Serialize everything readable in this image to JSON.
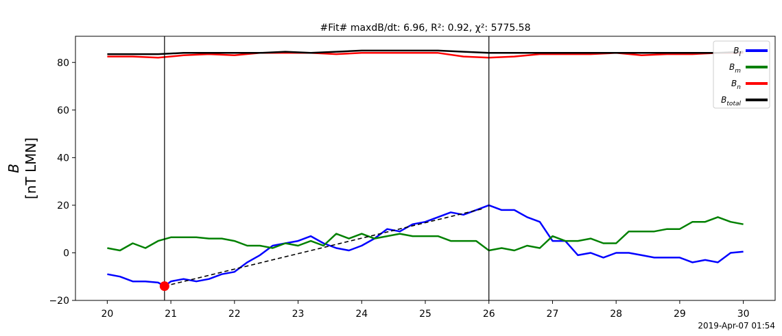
{
  "chart_data": {
    "type": "line",
    "title": "#Fit# maxdB/dt: 6.96, R²: 0.92, χ²: 5775.58",
    "ylabel_line1": "B",
    "ylabel_line2": "[nT LMN]",
    "xlabel": "",
    "xlim": [
      19.5,
      30.5
    ],
    "ylim": [
      -20,
      91
    ],
    "xticks": [
      20,
      21,
      22,
      23,
      24,
      25,
      26,
      27,
      28,
      29,
      30
    ],
    "yticks": [
      -20,
      0,
      20,
      40,
      60,
      80
    ],
    "timestamp": "2019-Apr-07 01:54",
    "legend_position": "top-right",
    "series": [
      {
        "name": "B_l",
        "label": "Bl",
        "color": "#0000ff",
        "x": [
          20.0,
          20.2,
          20.4,
          20.6,
          20.8,
          20.9,
          21.0,
          21.2,
          21.4,
          21.6,
          21.8,
          22.0,
          22.2,
          22.4,
          22.6,
          22.8,
          23.0,
          23.2,
          23.4,
          23.6,
          23.8,
          24.0,
          24.2,
          24.4,
          24.6,
          24.8,
          25.0,
          25.2,
          25.4,
          25.6,
          25.8,
          26.0,
          26.2,
          26.4,
          26.6,
          26.8,
          27.0,
          27.2,
          27.4,
          27.6,
          27.8,
          28.0,
          28.2,
          28.4,
          28.6,
          28.8,
          29.0,
          29.2,
          29.4,
          29.6,
          29.8,
          30.0
        ],
        "y": [
          -9,
          -10,
          -12,
          -12,
          -12.5,
          -14,
          -12,
          -11,
          -12,
          -11,
          -9,
          -8,
          -4,
          -1,
          3,
          4,
          5,
          7,
          4,
          2,
          1,
          3,
          6,
          10,
          9,
          12,
          13,
          15,
          17,
          16,
          18,
          20,
          18,
          18,
          15,
          13,
          5,
          5,
          -1,
          0,
          -2,
          0,
          0,
          -1,
          -2,
          -2,
          -2,
          -4,
          -3,
          -4,
          0,
          0.5
        ]
      },
      {
        "name": "B_m",
        "label": "Bm",
        "color": "#008000",
        "x": [
          20.0,
          20.2,
          20.4,
          20.6,
          20.8,
          21.0,
          21.2,
          21.4,
          21.6,
          21.8,
          22.0,
          22.2,
          22.4,
          22.6,
          22.8,
          23.0,
          23.2,
          23.4,
          23.6,
          23.8,
          24.0,
          24.2,
          24.4,
          24.6,
          24.8,
          25.0,
          25.2,
          25.4,
          25.6,
          25.8,
          26.0,
          26.2,
          26.4,
          26.6,
          26.8,
          27.0,
          27.2,
          27.4,
          27.6,
          27.8,
          28.0,
          28.2,
          28.4,
          28.6,
          28.8,
          29.0,
          29.2,
          29.4,
          29.6,
          29.8,
          30.0
        ],
        "y": [
          2,
          1,
          4,
          2,
          5,
          6.5,
          6.5,
          6.5,
          6,
          6,
          5,
          3,
          3,
          2,
          4,
          3,
          5,
          3,
          8,
          6,
          8,
          6,
          7,
          8,
          7,
          7,
          7,
          5,
          5,
          5,
          1,
          2,
          1,
          3,
          2,
          7,
          5,
          5,
          6,
          4,
          4,
          9,
          9,
          9,
          10,
          10,
          13,
          13,
          15,
          13,
          12
        ]
      },
      {
        "name": "B_n",
        "label": "Bn",
        "color": "#ff0000",
        "x": [
          20.0,
          20.4,
          20.8,
          21.2,
          21.6,
          22.0,
          22.4,
          22.8,
          23.2,
          23.6,
          24.0,
          24.4,
          24.8,
          25.2,
          25.6,
          26.0,
          26.4,
          26.8,
          27.2,
          27.6,
          28.0,
          28.4,
          28.8,
          29.2,
          29.6,
          30.0
        ],
        "y": [
          82.5,
          82.5,
          82,
          83,
          83.5,
          83,
          84,
          84,
          84,
          83.5,
          84,
          84,
          84,
          84,
          82.5,
          82,
          82.5,
          83.5,
          83.5,
          83.5,
          84,
          83,
          83.5,
          83.5,
          84,
          84
        ]
      },
      {
        "name": "B_total",
        "label": "Btotal",
        "color": "#000000",
        "x": [
          20.0,
          20.4,
          20.8,
          21.2,
          21.6,
          22.0,
          22.4,
          22.8,
          23.2,
          23.6,
          24.0,
          24.4,
          24.8,
          25.2,
          25.6,
          26.0,
          26.4,
          26.8,
          27.2,
          27.6,
          28.0,
          28.4,
          28.8,
          29.2,
          29.6,
          30.0
        ],
        "y": [
          83.5,
          83.5,
          83.5,
          84,
          84,
          84,
          84,
          84.5,
          84,
          84.5,
          85,
          85,
          85,
          85,
          84.5,
          84,
          84,
          84,
          84,
          84,
          84,
          84,
          84,
          84,
          84,
          84.5
        ]
      }
    ],
    "fit_line": {
      "x": [
        20.9,
        25.9
      ],
      "y": [
        -14,
        18.5
      ],
      "color": "#000000",
      "style": "dashed"
    },
    "vertical_lines": [
      20.9,
      26.0
    ],
    "marker": {
      "x": 20.9,
      "y": -14,
      "color": "#ff0000"
    }
  }
}
